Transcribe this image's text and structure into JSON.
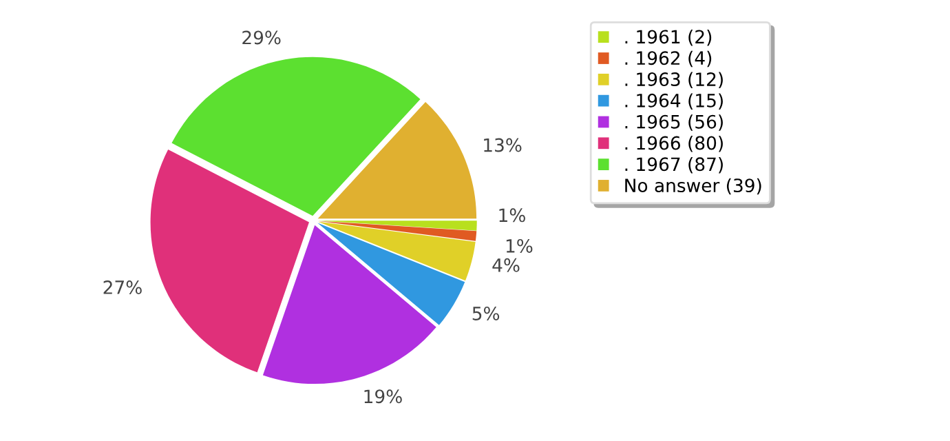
{
  "chart_data": {
    "type": "pie",
    "categories": [
      ". 1961 (2)",
      ". 1962 (4)",
      ". 1963 (12)",
      ". 1964 (15)",
      ". 1965 (56)",
      ". 1966 (80)",
      ". 1967 (87)",
      "No answer (39)"
    ],
    "values": [
      1,
      1,
      4,
      5,
      19,
      27,
      29,
      13
    ],
    "value_labels": [
      "1%",
      "1%",
      "4%",
      "5%",
      "19%",
      "27%",
      "29%",
      "13%"
    ],
    "colors": [
      "#b8e01e",
      "#e05a22",
      "#e0d028",
      "#3098e0",
      "#b030e0",
      "#e0307a",
      "#5ce030",
      "#e0b030"
    ],
    "legend": "top right"
  }
}
